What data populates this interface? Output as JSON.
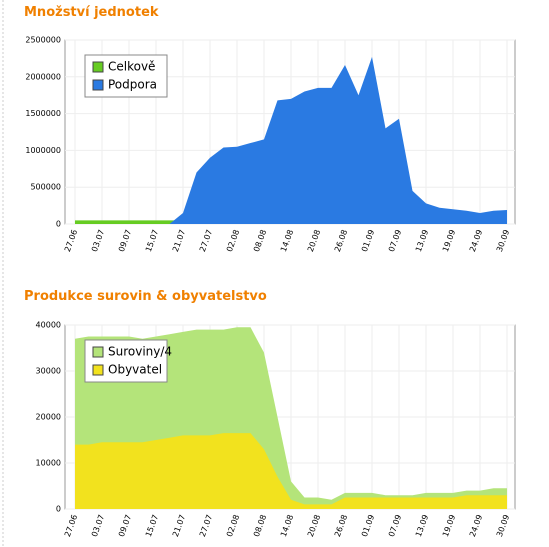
{
  "chart_data": [
    {
      "type": "area",
      "title": "Množství jednotek",
      "categories": [
        "27.06",
        null,
        "03.07",
        null,
        "09.07",
        null,
        "15.07",
        null,
        "21.07",
        null,
        "27.07",
        null,
        "02.08",
        null,
        "08.08",
        null,
        "14.08",
        null,
        "20.08",
        null,
        "26.08",
        null,
        "01.09",
        null,
        "07.09",
        null,
        "13.09",
        null,
        "19.09",
        null,
        "24.09",
        null,
        "30.09"
      ],
      "series": [
        {
          "name": "Celkově",
          "color": "#66cc22",
          "values": [
            50000,
            50000,
            50000,
            50000,
            50000,
            50000,
            50000,
            50000,
            50000,
            null,
            null,
            null,
            null,
            null,
            null,
            null,
            null,
            null,
            null,
            null,
            null,
            null,
            null,
            null,
            null,
            null,
            null,
            null,
            null,
            null,
            null,
            null,
            null
          ]
        },
        {
          "name": "Podpora",
          "color": "#2a7ae2",
          "values": [
            0,
            0,
            0,
            0,
            0,
            0,
            0,
            0,
            150000,
            700000,
            900000,
            1040000,
            1050000,
            1100000,
            1150000,
            1680000,
            1700000,
            1800000,
            1850000,
            1850000,
            2160000,
            1750000,
            2270000,
            1300000,
            1430000,
            450000,
            280000,
            220000,
            200000,
            180000,
            150000,
            180000,
            190000
          ]
        }
      ],
      "ylim": [
        0,
        2500000
      ],
      "yticks": [
        0,
        500000,
        1000000,
        1500000,
        2000000,
        2500000
      ],
      "grid": true,
      "legend": "top-left"
    },
    {
      "type": "area",
      "title": "Produkce surovin & obyvatelstvo",
      "categories": [
        "27.06",
        null,
        "03.07",
        null,
        "09.07",
        null,
        "15.07",
        null,
        "21.07",
        null,
        "27.07",
        null,
        "02.08",
        null,
        "08.08",
        null,
        "14.08",
        null,
        "20.08",
        null,
        "26.08",
        null,
        "01.09",
        null,
        "07.09",
        null,
        "13.09",
        null,
        "19.09",
        null,
        "24.09",
        null,
        "30.09"
      ],
      "series": [
        {
          "name": "Suroviny/4",
          "color": "#b4e47a",
          "values": [
            37000,
            37500,
            37500,
            37500,
            37500,
            37000,
            37500,
            38000,
            38500,
            39000,
            39000,
            39000,
            39500,
            39500,
            34000,
            20000,
            6000,
            2500,
            2500,
            2000,
            3500,
            3500,
            3500,
            3000,
            3000,
            3000,
            3500,
            3500,
            3500,
            4000,
            4000,
            4500,
            4500
          ]
        },
        {
          "name": "Obyvatel",
          "color": "#f2e21e",
          "values": [
            14000,
            14000,
            14500,
            14500,
            14500,
            14500,
            15000,
            15500,
            16000,
            16000,
            16000,
            16500,
            16500,
            16500,
            13000,
            7000,
            2000,
            1000,
            1000,
            1000,
            2500,
            2500,
            2500,
            2500,
            2500,
            2500,
            2500,
            2500,
            2500,
            3000,
            3000,
            3000,
            3000
          ]
        }
      ],
      "ylim": [
        0,
        40000
      ],
      "yticks": [
        0,
        10000,
        20000,
        30000,
        40000
      ],
      "grid": true,
      "legend": "top-left"
    }
  ]
}
